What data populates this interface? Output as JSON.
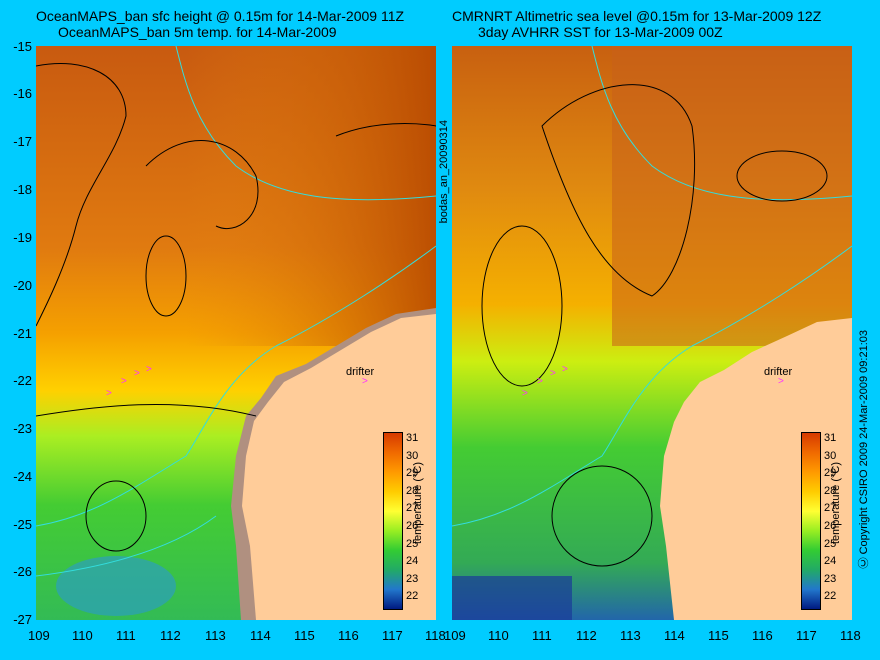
{
  "left_panel": {
    "title_line1": "OceanMAPS_ban sfc height @ 0.15m for 14-Mar-2009 11Z",
    "title_line2": "OceanMAPS_ban 5m temp. for 14-Mar-2009"
  },
  "right_panel": {
    "title_line1": "CMRNRT Altimetric sea level  @0.15m  for 13-Mar-2009 12Z",
    "title_line2": "3day AVHRR SST for 13-Mar-2009 00Z"
  },
  "side_label_left": "bodas_an_20090314",
  "side_label_right": "Ⓒ Copyright CSIRO 2009   24-Mar-2009 09:21:03",
  "y_axis_labels": [
    "-15",
    "-16",
    "-17",
    "-18",
    "-19",
    "-20",
    "-21",
    "-22",
    "-23",
    "-24",
    "-25",
    "-26",
    "-27"
  ],
  "x_axis_labels": [
    "109",
    "110",
    "111",
    "112",
    "113",
    "114",
    "115",
    "116",
    "117",
    "118"
  ],
  "colorbar": {
    "title": "temperature (°C)",
    "ticks": [
      "31",
      "30",
      "29",
      "28",
      "27",
      "26",
      "25",
      "24",
      "23",
      "22"
    ],
    "colors": [
      "#d63a00",
      "#f06a00",
      "#ff9a00",
      "#ffcc00",
      "#ffff33",
      "#99ee22",
      "#33cc33",
      "#22aa66",
      "#2277cc",
      "#001a80"
    ]
  },
  "drifter_label": "drifter",
  "colors": {
    "background": "#00ccff",
    "land": "#ffcc99",
    "land_shadow": "#b09080",
    "contour": "#000000",
    "isobath": "#33dddd",
    "drifter_marker": "#ff33ff"
  }
}
